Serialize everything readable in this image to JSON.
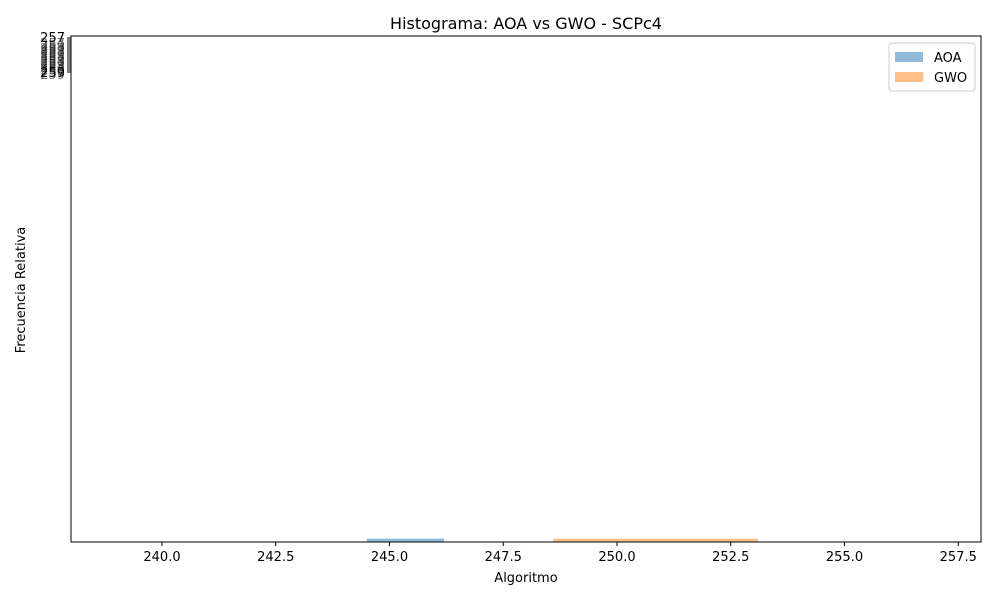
{
  "chart_data": {
    "type": "bar",
    "title": "Histograma: AOA vs GWO - SCPc4",
    "xlabel": "Algoritmo",
    "ylabel": "Frecuencia Relativa",
    "xlim": [
      238.0,
      258.0
    ],
    "x_ticks": [
      "240.0",
      "242.5",
      "245.0",
      "247.5",
      "250.0",
      "252.5",
      "255.0",
      "257.5"
    ],
    "x_tick_values": [
      240.0,
      242.5,
      245.0,
      247.5,
      250.0,
      252.5,
      255.0,
      257.5
    ],
    "y_ticks_note": "overlapping tick labels clustered near the top of the y-axis, illegible",
    "y_ticks": [
      "257",
      "259"
    ],
    "legend_position": "top-right",
    "grid": false,
    "series": [
      {
        "name": "AOA",
        "color": "#1f77b4",
        "alpha": 0.5,
        "bins": [
          {
            "x0": 244.5,
            "x1": 246.2,
            "value": 0.002
          }
        ]
      },
      {
        "name": "GWO",
        "color": "#ff7f0e",
        "alpha": 0.5,
        "bins": [
          {
            "x0": 248.6,
            "x1": 253.1,
            "value": 0.002
          }
        ]
      }
    ]
  }
}
